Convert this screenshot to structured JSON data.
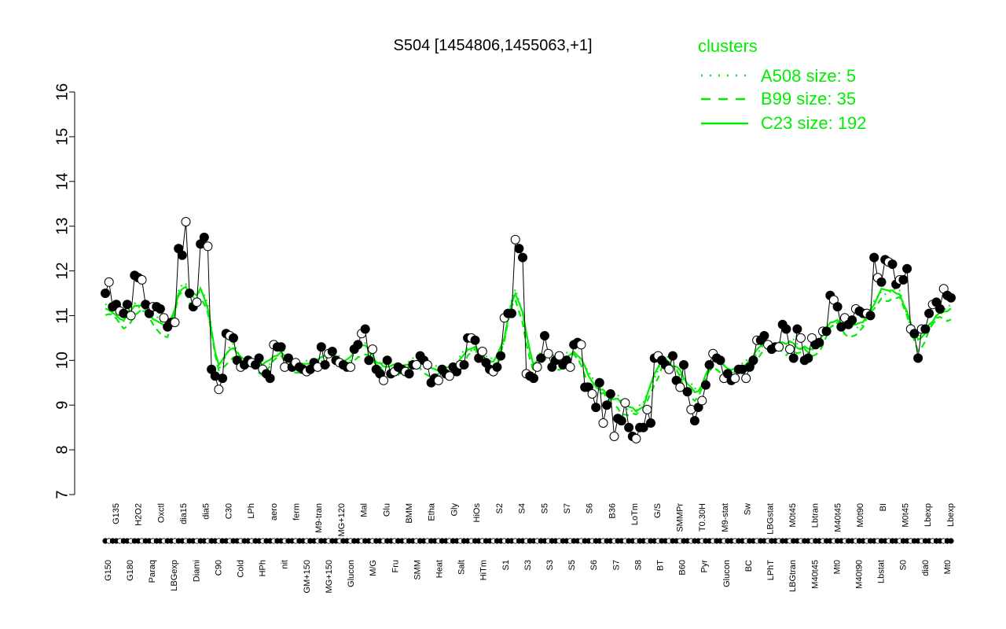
{
  "chart_data": {
    "type": "line",
    "title": "S504 [1454806,1455063,+1]",
    "xlabel": "",
    "ylabel": "",
    "ylim": [
      7,
      16
    ],
    "yticks": [
      7,
      8,
      9,
      10,
      11,
      12,
      13,
      14,
      15,
      16
    ],
    "legend": {
      "title": "clusters",
      "placement": "top-right",
      "entries": [
        {
          "label": "A508 size: 5",
          "style": "dotted"
        },
        {
          "label": "B99 size: 35",
          "style": "dashed"
        },
        {
          "label": "C23 size: 192",
          "style": "solid"
        }
      ]
    },
    "x_tick_labels_lower": [
      "G150",
      "G180",
      "Paraq",
      "LBGexp",
      "Diami",
      "C90",
      "Cold",
      "HPh",
      "nit",
      "GM+150",
      "MG+150",
      "Glucon",
      "M/G",
      "Fru",
      "SMM",
      "Heat",
      "Salt",
      "HiTm",
      "S1",
      "S3",
      "S3",
      "S5",
      "S6",
      "S7",
      "S8",
      "BT",
      "B60",
      "Pyr",
      "Glucon",
      "BC",
      "LPhT",
      "LBGtran",
      "M40t45",
      "Mt0",
      "M40t90",
      "Lbstat",
      "S0",
      "dia0",
      "Mt0"
    ],
    "x_tick_labels_upper": [
      "G135",
      "H2O2",
      "Oxctl",
      "dia15",
      "dia5",
      "C30",
      "LPh",
      "aero",
      "ferm",
      "M9-tran",
      "MG+120",
      "Mal",
      "Glu",
      "BMM",
      "Etha",
      "Gly",
      "HiOs",
      "S2",
      "S4",
      "S5",
      "S7",
      "S6",
      "B36",
      "LoTm",
      "G/S",
      "SMMPr",
      "T0.30H",
      "M9-stat",
      "Sw",
      "LBGstat",
      "M0t45",
      "Lbtran",
      "M40t45",
      "M0t90",
      "BI",
      "M0t45",
      "Lbexp",
      "Lbexp"
    ],
    "colors": {
      "clusters": "#00ee00",
      "points_filled": "#000000",
      "points_open": "#ffffff",
      "profile_line": "#000000"
    },
    "series": [
      {
        "values": [
          11.5,
          11.75,
          11.2,
          11.25,
          11.1,
          11.05,
          11.25,
          11.0,
          11.9,
          11.85,
          11.8,
          11.25,
          11.05,
          11.2,
          11.2,
          11.15,
          10.95,
          10.75,
          10.85,
          10.85,
          12.5,
          12.35,
          13.1,
          11.5,
          11.2,
          11.3,
          12.6,
          12.75,
          12.55,
          9.8,
          9.65,
          9.35,
          9.6,
          10.6,
          10.55,
          10.5,
          10.0,
          9.85,
          9.9,
          10.0,
          9.95,
          9.9,
          10.05,
          9.8,
          9.7,
          9.6,
          10.35,
          10.3,
          10.3,
          9.85,
          10.05,
          9.85,
          9.95,
          9.85,
          9.8,
          9.75,
          9.8,
          9.95,
          9.85,
          10.3,
          9.9,
          10.15,
          10.2,
          10.0,
          9.95,
          9.9,
          9.85,
          9.85,
          10.25,
          10.35,
          10.6,
          10.7,
          10.0,
          10.25,
          9.8,
          9.7,
          9.55,
          10.0,
          9.7,
          9.75,
          9.85,
          9.8,
          9.75,
          9.7,
          9.9,
          9.9,
          10.1,
          10.0,
          9.9,
          9.5,
          9.6,
          9.55,
          9.8,
          9.7,
          9.65,
          9.85,
          9.75,
          9.9,
          9.9,
          10.5,
          10.5,
          10.45,
          10.05,
          10.2,
          9.95,
          9.8,
          9.75,
          9.85,
          10.1,
          10.95,
          11.05,
          11.05,
          12.7,
          12.5,
          12.3,
          9.7,
          9.65,
          9.6,
          9.85,
          10.05,
          10.55,
          10.15,
          9.85,
          10.0,
          10.1,
          9.9,
          10.0,
          9.85,
          10.35,
          10.4,
          10.35,
          9.4,
          9.4,
          9.25,
          8.95,
          9.5,
          8.6,
          9.0,
          9.25,
          8.3,
          8.7,
          8.65,
          9.05,
          8.5,
          8.3,
          8.25,
          8.5,
          8.5,
          8.9,
          8.6,
          10.05,
          10.1,
          10.0,
          9.9,
          9.8,
          10.1,
          9.55,
          9.4,
          9.9,
          9.3,
          8.9,
          8.65,
          8.95,
          9.1,
          9.45,
          9.9,
          10.15,
          10.05,
          10.0,
          9.6,
          9.7,
          9.55,
          9.6,
          9.8,
          9.8,
          9.6,
          9.85,
          10.0,
          10.45,
          10.45,
          10.55,
          10.35,
          10.25,
          10.3,
          10.3,
          10.8,
          10.7,
          10.25,
          10.05,
          10.7,
          10.5,
          10.0,
          10.05,
          10.5,
          10.35,
          10.4,
          10.65,
          10.65,
          11.45,
          11.35,
          11.2,
          10.75,
          10.95,
          10.8,
          10.9,
          11.15,
          11.1,
          11.05,
          11.05,
          11.0,
          12.3,
          11.85,
          11.75,
          12.25,
          12.2,
          12.15,
          11.7,
          11.8,
          11.8,
          12.05,
          10.7,
          10.6,
          10.05,
          10.7,
          10.7,
          11.05,
          11.25,
          11.3,
          11.15,
          11.6,
          11.45,
          11.4
        ],
        "name": ""
      }
    ]
  }
}
